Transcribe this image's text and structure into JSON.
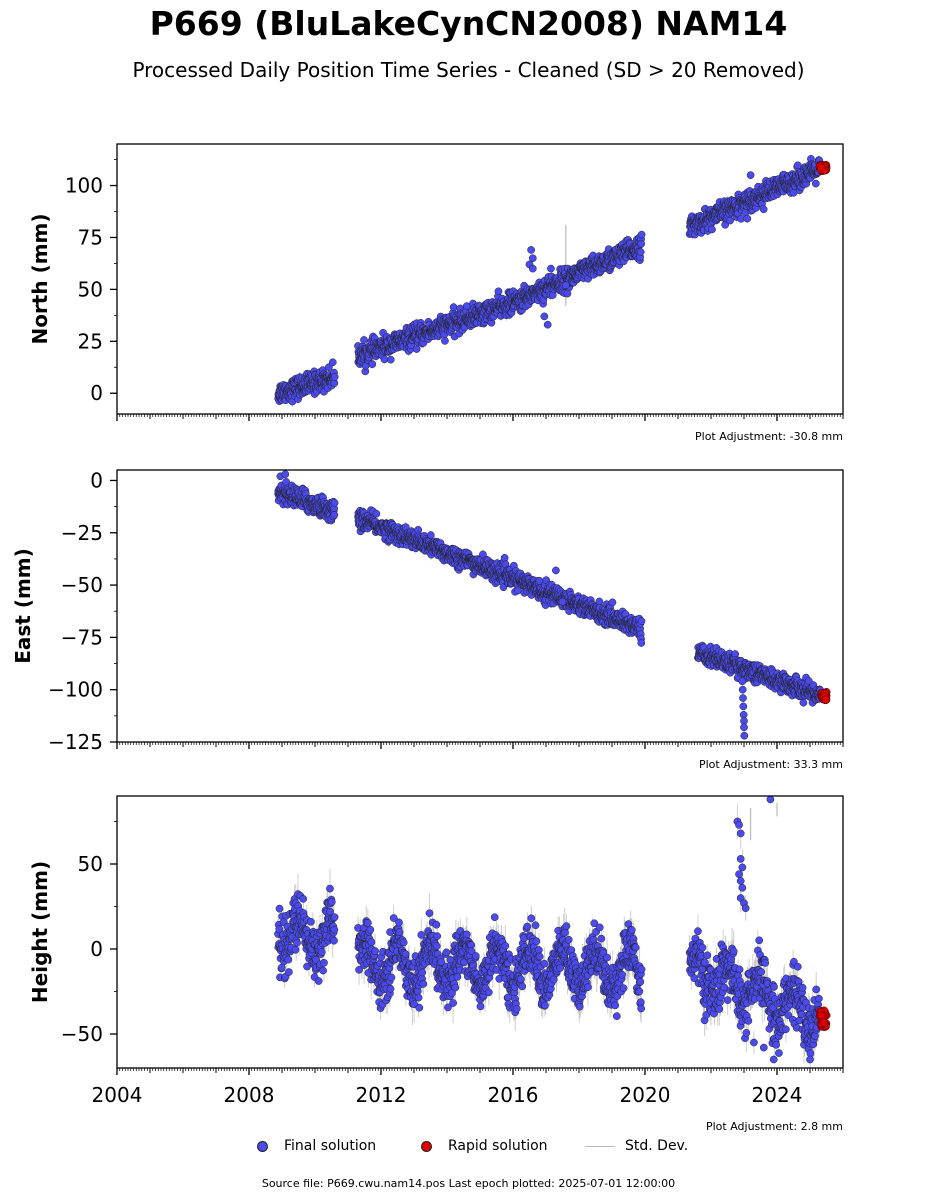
{
  "title": "P669 (BluLakeCynCN2008) NAM14",
  "subtitle": "Processed Daily Position Time Series - Cleaned (SD > 20 Removed)",
  "source": "Source file: P669.cwu.nam14.pos  Last epoch plotted: 2025-07-01 12:00:00",
  "legend": {
    "final": "Final solution",
    "rapid": "Rapid solution",
    "std": "Std. Dev."
  },
  "colors": {
    "final": "#4a4aee",
    "rapid": "#dd0000",
    "std": "#bbbbbb",
    "marker_edge": "#222222"
  },
  "chart_data": [
    {
      "type": "scatter",
      "name": "north",
      "ylabel": "North (mm)",
      "adjustment": "Plot Adjustment: -30.8 mm",
      "xlim": [
        2004,
        2026
      ],
      "ylim": [
        -10,
        120
      ],
      "yticks": [
        0,
        25,
        50,
        75,
        100
      ],
      "xticks": [
        2004,
        2008,
        2012,
        2016,
        2020,
        2024
      ],
      "show_xticklabels": false,
      "final_segments": [
        {
          "x": [
            2008.88,
            2010.6
          ],
          "y": [
            0,
            8
          ],
          "noise": 2.5
        },
        {
          "x": [
            2011.3,
            2016.45
          ],
          "y": [
            18,
            46
          ],
          "noise": 2.5
        },
        {
          "x": [
            2016.45,
            2019.9
          ],
          "y": [
            47,
            71
          ],
          "noise": 2.5
        },
        {
          "x": [
            2021.35,
            2025.3
          ],
          "y": [
            80,
            108
          ],
          "noise": 2.5
        }
      ],
      "final_outliers": [
        [
          2016.55,
          69
        ],
        [
          2016.6,
          65
        ],
        [
          2016.5,
          62
        ],
        [
          2016.6,
          60
        ],
        [
          2016.95,
          37
        ],
        [
          2017.05,
          33
        ],
        [
          2017.15,
          60
        ],
        [
          2023.2,
          105
        ],
        [
          2017.6,
          52
        ],
        [
          2017.65,
          48
        ]
      ],
      "rapid": {
        "x": [
          2025.3,
          2025.5
        ],
        "y": [
          107,
          110
        ]
      },
      "std_dev": 2,
      "std_outliers": [
        [
          2017.6,
          42,
          81
        ]
      ]
    },
    {
      "type": "scatter",
      "name": "east",
      "ylabel": "East (mm)",
      "adjustment": "Plot Adjustment: 33.3 mm",
      "xlim": [
        2004,
        2026
      ],
      "ylim": [
        -125,
        5
      ],
      "yticks": [
        0,
        -25,
        -50,
        -75,
        -100,
        -125
      ],
      "xticks": [
        2004,
        2008,
        2012,
        2016,
        2020,
        2024
      ],
      "show_xticklabels": false,
      "final_segments": [
        {
          "x": [
            2008.88,
            2010.6
          ],
          "y": [
            -5,
            -15
          ],
          "noise": 2.5
        },
        {
          "x": [
            2011.3,
            2019.9
          ],
          "y": [
            -18,
            -71
          ],
          "noise": 2.2
        },
        {
          "x": [
            2021.6,
            2025.35
          ],
          "y": [
            -82,
            -103
          ],
          "noise": 2.2
        }
      ],
      "final_outliers": [
        [
          2008.95,
          2
        ],
        [
          2009.1,
          3
        ],
        [
          2022.95,
          -96
        ],
        [
          2022.96,
          -100
        ],
        [
          2022.97,
          -104
        ],
        [
          2022.98,
          -108
        ],
        [
          2022.99,
          -112
        ],
        [
          2023.0,
          -115
        ],
        [
          2023.0,
          -118
        ],
        [
          2023.01,
          -122
        ],
        [
          2016.8,
          -48
        ],
        [
          2017.3,
          -43
        ],
        [
          2017.5,
          -58
        ]
      ],
      "rapid": {
        "x": [
          2025.35,
          2025.5
        ],
        "y": [
          -101,
          -105
        ]
      },
      "std_dev": 2,
      "std_outliers": []
    },
    {
      "type": "scatter",
      "name": "height",
      "ylabel": "Height (mm)",
      "adjustment": "Plot Adjustment: 2.8 mm",
      "xlim": [
        2004,
        2026
      ],
      "ylim": [
        -70,
        90
      ],
      "yticks": [
        -50,
        0,
        50
      ],
      "xticks": [
        2004,
        2008,
        2012,
        2016,
        2020,
        2024
      ],
      "show_xticklabels": true,
      "final_segments": [
        {
          "x": [
            2008.88,
            2010.6
          ],
          "y": [
            8,
            6
          ],
          "noise": 8,
          "seasonal": 9
        },
        {
          "x": [
            2011.3,
            2019.9
          ],
          "y": [
            -8,
            -12
          ],
          "noise": 7,
          "seasonal": 12
        },
        {
          "x": [
            2021.35,
            2025.3
          ],
          "y": [
            -12,
            -40
          ],
          "noise": 8,
          "seasonal": 10
        }
      ],
      "final_outliers": [
        [
          2022.8,
          75
        ],
        [
          2022.85,
          73
        ],
        [
          2022.9,
          68
        ],
        [
          2022.9,
          53
        ],
        [
          2022.95,
          48
        ],
        [
          2022.85,
          44
        ],
        [
          2022.9,
          40
        ],
        [
          2022.95,
          36
        ],
        [
          2022.9,
          30
        ],
        [
          2023.0,
          27
        ],
        [
          2023.05,
          24
        ],
        [
          2023.8,
          88
        ],
        [
          2023.3,
          -55
        ],
        [
          2023.6,
          -58
        ],
        [
          2025.0,
          -65
        ],
        [
          2023.9,
          -65
        ]
      ],
      "rapid": {
        "x": [
          2025.3,
          2025.5
        ],
        "y": [
          -36,
          -46
        ]
      },
      "std_dev": 9,
      "std_outliers": [
        [
          2023.2,
          64,
          83
        ],
        [
          2024.0,
          78,
          86
        ]
      ]
    }
  ]
}
